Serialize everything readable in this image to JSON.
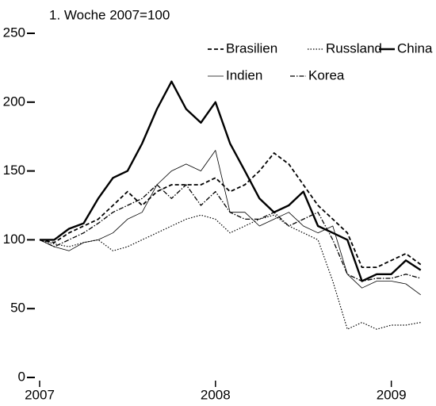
{
  "chart_data": {
    "type": "line",
    "axis_label": "1. Woche 2007=100",
    "x": [
      2007.0,
      2007.083,
      2007.167,
      2007.25,
      2007.333,
      2007.417,
      2007.5,
      2007.583,
      2007.667,
      2007.75,
      2007.833,
      2007.917,
      2008.0,
      2008.083,
      2008.167,
      2008.25,
      2008.333,
      2008.417,
      2008.5,
      2008.583,
      2008.667,
      2008.75,
      2008.833,
      2008.917,
      2009.0,
      2009.083,
      2009.167
    ],
    "xlim": [
      2007,
      2009.2
    ],
    "xticks": [
      2007,
      2008,
      2009
    ],
    "ylim": [
      0,
      250
    ],
    "yticks": [
      0,
      50,
      100,
      150,
      200,
      250
    ],
    "series": [
      {
        "name": "Brasilien",
        "color": "#000000",
        "dash": "5,3",
        "width": 1.8,
        "values": [
          100,
          98,
          105,
          110,
          115,
          125,
          135,
          125,
          135,
          140,
          140,
          140,
          145,
          135,
          140,
          150,
          163,
          155,
          140,
          125,
          115,
          105,
          80,
          80,
          85,
          90,
          82
        ]
      },
      {
        "name": "Russland",
        "color": "#000000",
        "dash": "1.5,2",
        "width": 1.2,
        "values": [
          100,
          97,
          95,
          98,
          100,
          92,
          95,
          100,
          105,
          110,
          115,
          118,
          115,
          105,
          110,
          115,
          118,
          110,
          105,
          100,
          70,
          35,
          40,
          35,
          38,
          38,
          40
        ]
      },
      {
        "name": "China",
        "color": "#000000",
        "dash": "none",
        "width": 2.4,
        "values": [
          100,
          100,
          108,
          112,
          130,
          145,
          150,
          170,
          195,
          215,
          195,
          185,
          200,
          170,
          150,
          130,
          120,
          125,
          135,
          110,
          105,
          100,
          70,
          75,
          75,
          85,
          78
        ]
      },
      {
        "name": "Indien",
        "color": "#000000",
        "dash": "none",
        "width": 0.8,
        "values": [
          100,
          95,
          92,
          98,
          100,
          105,
          115,
          120,
          140,
          150,
          155,
          150,
          165,
          120,
          120,
          110,
          115,
          120,
          110,
          105,
          110,
          75,
          65,
          70,
          70,
          68,
          60
        ]
      },
      {
        "name": "Korea",
        "color": "#000000",
        "dash": "6,2,1.5,2",
        "width": 1.3,
        "values": [
          100,
          95,
          100,
          105,
          112,
          120,
          125,
          130,
          140,
          130,
          140,
          125,
          135,
          120,
          115,
          115,
          120,
          110,
          115,
          120,
          100,
          75,
          70,
          72,
          72,
          75,
          72
        ]
      }
    ]
  }
}
